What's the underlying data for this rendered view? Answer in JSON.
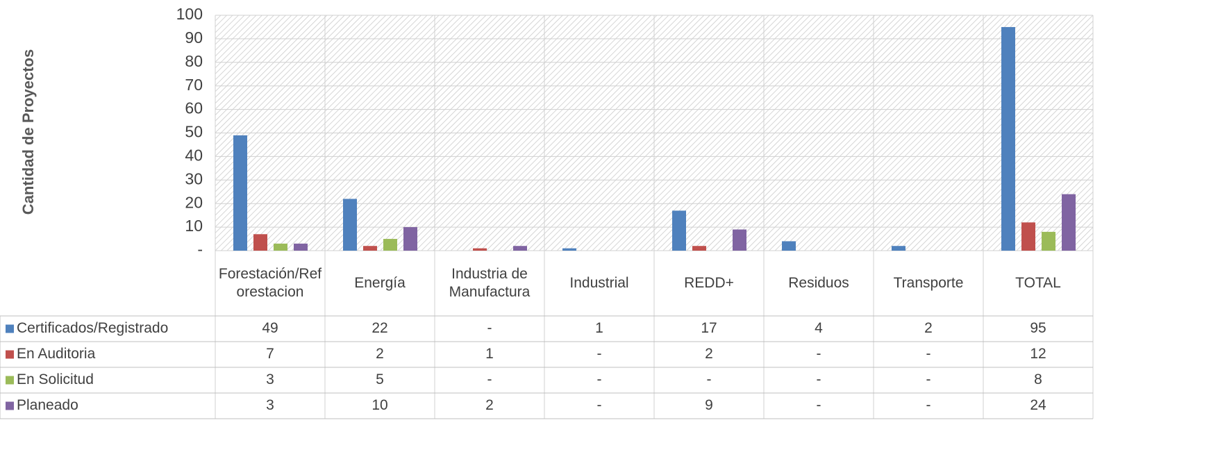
{
  "chart_data": {
    "type": "bar",
    "y_label": "Cantidad de Proyectos",
    "categories": [
      "Forestación/Reforestacion",
      "Energía",
      "Industria de Manufactura",
      "Industrial",
      "REDD+",
      "Residuos",
      "Transporte",
      "TOTAL"
    ],
    "series": [
      {
        "name": "Certificados/Registrado",
        "color": "#4f81bd",
        "values": [
          49,
          22,
          0,
          1,
          17,
          4,
          2,
          95
        ],
        "value_labels": [
          "49",
          "22",
          "-",
          "1",
          "17",
          "4",
          "2",
          "95"
        ]
      },
      {
        "name": "En Auditoria",
        "color": "#c0504d",
        "values": [
          7,
          2,
          1,
          0,
          2,
          0,
          0,
          12
        ],
        "value_labels": [
          "7",
          "2",
          "1",
          "-",
          "2",
          "-",
          "-",
          "12"
        ]
      },
      {
        "name": "En Solicitud",
        "color": "#9bbb59",
        "values": [
          3,
          5,
          0,
          0,
          0,
          0,
          0,
          8
        ],
        "value_labels": [
          "3",
          "5",
          "-",
          "-",
          "-",
          "-",
          "-",
          "8"
        ]
      },
      {
        "name": "Planeado",
        "color": "#8064a2",
        "values": [
          3,
          10,
          2,
          0,
          9,
          0,
          0,
          24
        ],
        "value_labels": [
          "3",
          "10",
          "2",
          "-",
          "9",
          "-",
          "-",
          "24"
        ]
      }
    ],
    "ylim": [
      0,
      100
    ],
    "yticks": [
      {
        "value": 0,
        "label": "-"
      },
      10,
      20,
      30,
      40,
      50,
      60,
      70,
      80,
      90,
      100
    ],
    "grid": true
  }
}
